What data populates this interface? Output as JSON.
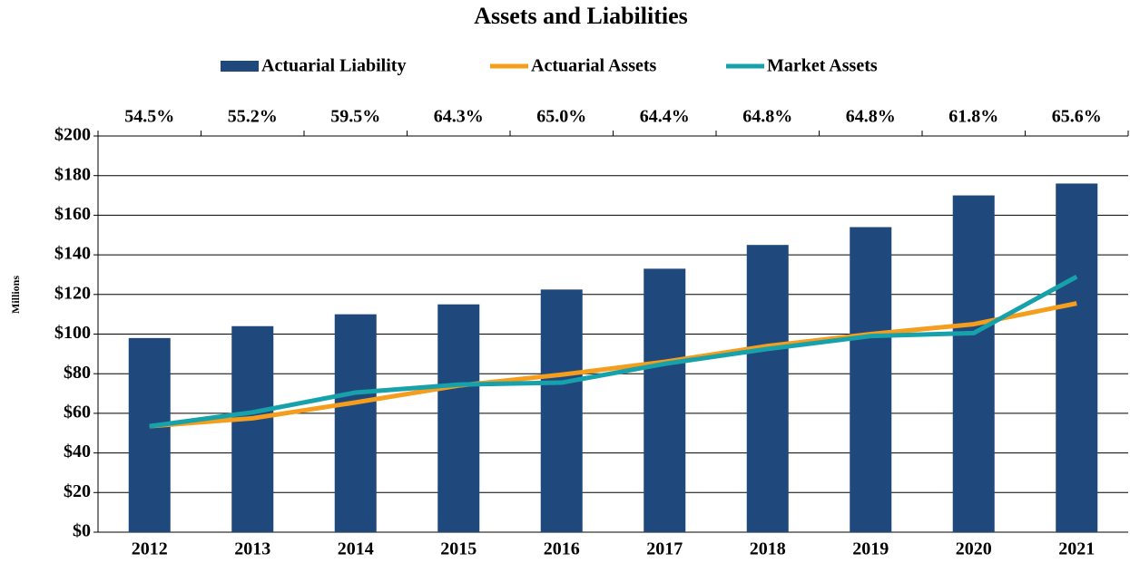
{
  "chart_data": {
    "type": "bar-line",
    "title": "Assets and Liabilities",
    "y_label": "Millions",
    "categories": [
      "2012",
      "2013",
      "2014",
      "2015",
      "2016",
      "2017",
      "2018",
      "2019",
      "2020",
      "2021"
    ],
    "annotations": [
      "54.5%",
      "55.2%",
      "59.5%",
      "64.3%",
      "65.0%",
      "64.4%",
      "64.8%",
      "64.8%",
      "61.8%",
      "65.6%"
    ],
    "series": [
      {
        "name": "Actuarial Liability",
        "type": "bar",
        "color": "#1f497d",
        "values": [
          98,
          104,
          110,
          115,
          122.5,
          133,
          145,
          154,
          170,
          176
        ]
      },
      {
        "name": "Actuarial Assets",
        "type": "line",
        "color": "#f59d1c",
        "values": [
          53.5,
          57.5,
          65.5,
          74,
          79.5,
          86,
          94,
          100,
          105,
          115.5
        ]
      },
      {
        "name": "Market Assets",
        "type": "line",
        "color": "#17a2ab",
        "values": [
          53.5,
          60.5,
          70.5,
          74.5,
          75.5,
          85,
          92.5,
          99,
          100.5,
          129
        ]
      }
    ],
    "ylim": [
      0,
      200
    ],
    "yticks": [
      {
        "value": 0,
        "label": "$0"
      },
      {
        "value": 20,
        "label": "$20"
      },
      {
        "value": 40,
        "label": "$40"
      },
      {
        "value": 60,
        "label": "$60"
      },
      {
        "value": 80,
        "label": "$80"
      },
      {
        "value": 100,
        "label": "$100"
      },
      {
        "value": 120,
        "label": "$120"
      },
      {
        "value": 140,
        "label": "$140"
      },
      {
        "value": 160,
        "label": "$160"
      },
      {
        "value": 180,
        "label": "$180"
      },
      {
        "value": 200,
        "label": "$200"
      }
    ],
    "grid": true
  }
}
